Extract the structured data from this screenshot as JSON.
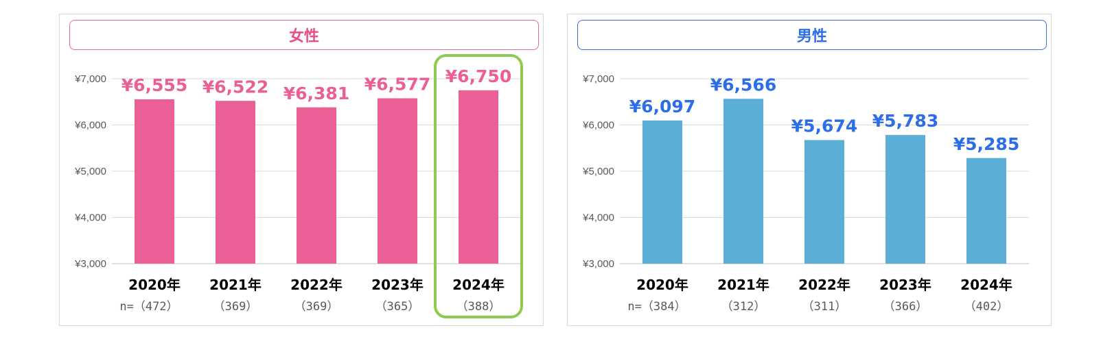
{
  "chart_data": [
    {
      "type": "bar",
      "title": "女性",
      "categories": [
        "2020年",
        "2021年",
        "2022年",
        "2023年",
        "2024年"
      ],
      "n_labels": [
        "n=（472）",
        "（369）",
        "（369）",
        "（365）",
        "（388）"
      ],
      "values": [
        6555,
        6522,
        6381,
        6577,
        6750
      ],
      "value_labels": [
        "¥6,555",
        "¥6,522",
        "¥6,381",
        "¥6,577",
        "¥6,750"
      ],
      "yticks": [
        "¥3,000",
        "¥4,000",
        "¥5,000",
        "¥6,000",
        "¥7,000"
      ],
      "ylim": [
        3000,
        7000
      ],
      "grid": true,
      "highlight_index": 4,
      "colors": {
        "bar": "#EA6096",
        "label": "#EA6096",
        "title_border": "#E5699A",
        "title_text": "#EA4C89",
        "highlight": "#8DCB4F"
      }
    },
    {
      "type": "bar",
      "title": "男性",
      "categories": [
        "2020年",
        "2021年",
        "2022年",
        "2023年",
        "2024年"
      ],
      "n_labels": [
        "n=（384）",
        "（312）",
        "（311）",
        "（366）",
        "（402）"
      ],
      "values": [
        6097,
        6566,
        5674,
        5783,
        5285
      ],
      "value_labels": [
        "¥6,097",
        "¥6,566",
        "¥5,674",
        "¥5,783",
        "¥5,285"
      ],
      "yticks": [
        "¥3,000",
        "¥4,000",
        "¥5,000",
        "¥6,000",
        "¥7,000"
      ],
      "ylim": [
        3000,
        7000
      ],
      "grid": true,
      "colors": {
        "bar": "#5BAED6",
        "label": "#2B6EE8",
        "title_border": "#3A6FE0",
        "title_text": "#2B6EE8"
      }
    }
  ]
}
